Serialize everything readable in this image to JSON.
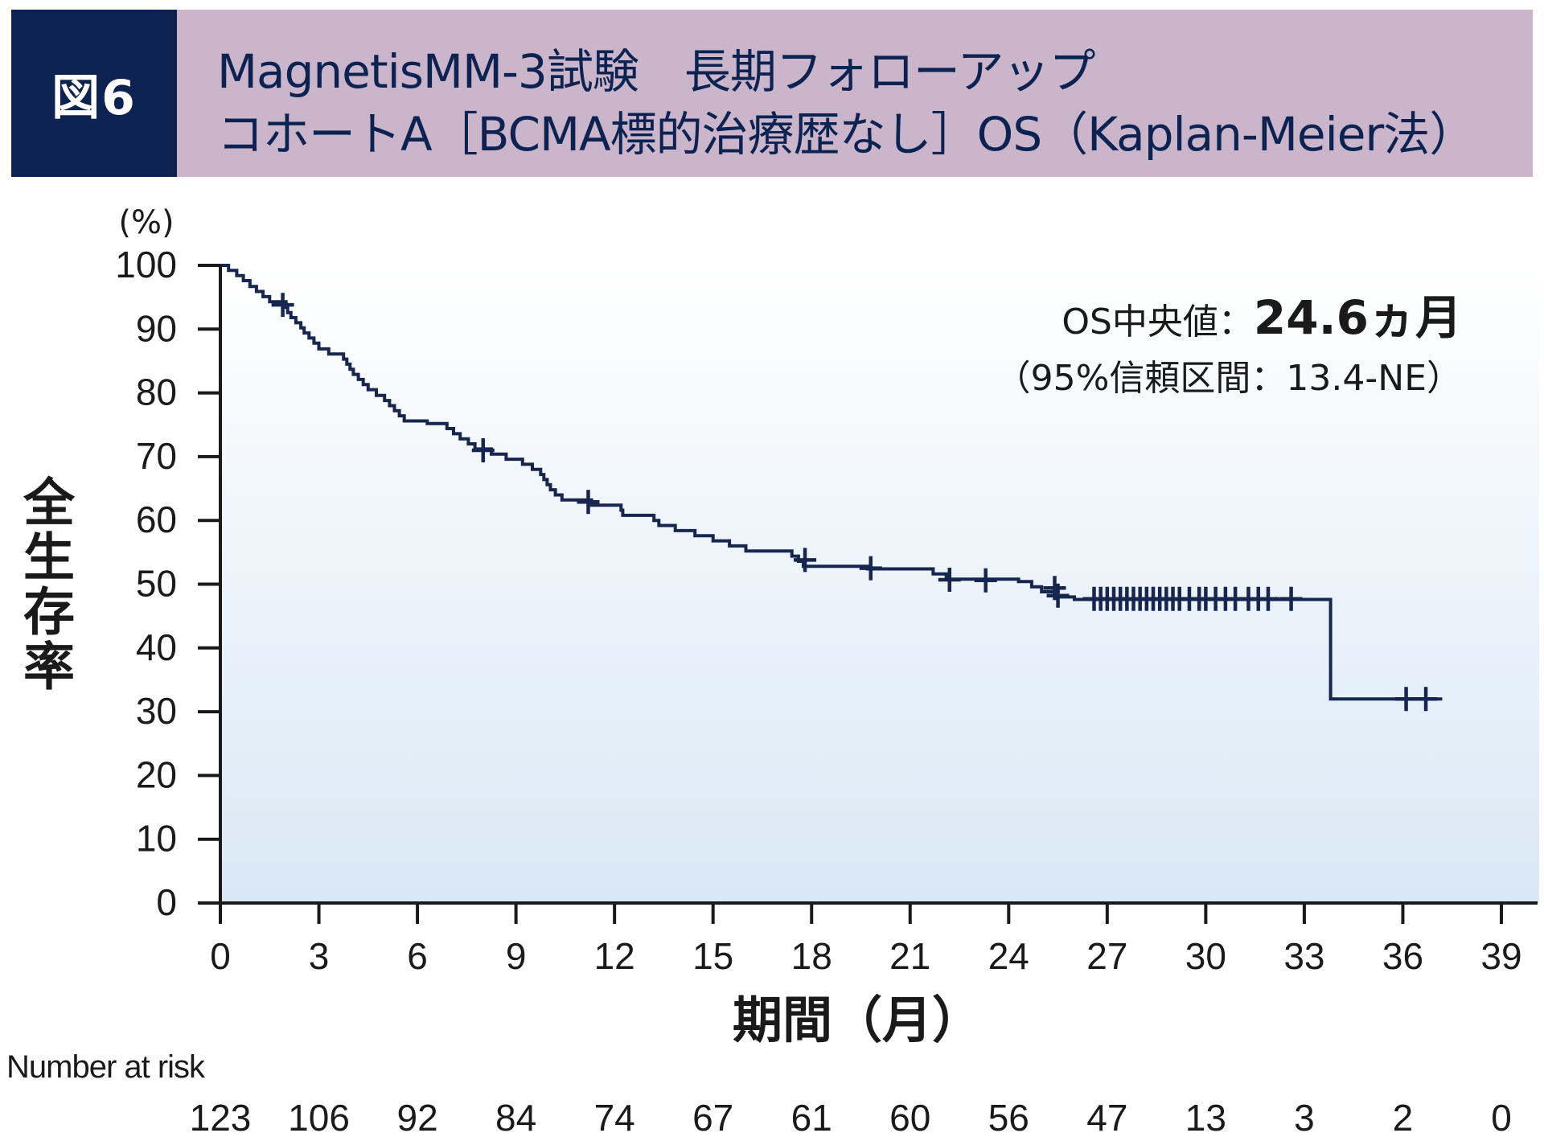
{
  "header": {
    "badge": "図6",
    "title_line1": "MagnetisMM-3試験　長期フォローアップ",
    "title_line2": "コホートA［BCMA標的治療歴なし］OS（Kaplan-Meier法）"
  },
  "colors": {
    "header_badge_bg": "#0c2352",
    "header_title_bg": "#cbb5cb",
    "title_text": "#0c2352",
    "curve": "#16264f",
    "plot_bg_top": "#ffffff",
    "plot_bg_bottom": "#d9e8f5"
  },
  "chart_data": {
    "type": "line",
    "subtype": "kaplan-meier",
    "ylabel": "全生存率",
    "yunit": "(%)",
    "xlabel": "期間（月）",
    "xlim": [
      0,
      39
    ],
    "ylim": [
      0,
      100
    ],
    "x_ticks": [
      0,
      3,
      6,
      9,
      12,
      15,
      18,
      21,
      24,
      27,
      30,
      33,
      36,
      39
    ],
    "y_ticks": [
      0,
      10,
      20,
      30,
      40,
      50,
      60,
      70,
      80,
      90,
      100
    ],
    "annotation": {
      "median_label": "OS中央値：",
      "median_value": "24.6ヵ月",
      "ci": "（95%信頼区間：13.4-NE）"
    },
    "steps": [
      [
        0,
        100
      ],
      [
        0.25,
        99.2
      ],
      [
        0.5,
        98.4
      ],
      [
        0.7,
        97.6
      ],
      [
        0.9,
        96.7
      ],
      [
        1.1,
        95.9
      ],
      [
        1.3,
        95.1
      ],
      [
        1.5,
        94.3
      ],
      [
        2.0,
        93.4
      ],
      [
        2.05,
        92.6
      ],
      [
        2.15,
        91.8
      ],
      [
        2.3,
        91.0
      ],
      [
        2.45,
        90.2
      ],
      [
        2.55,
        89.4
      ],
      [
        2.7,
        88.6
      ],
      [
        2.85,
        87.8
      ],
      [
        3.0,
        86.9
      ],
      [
        3.3,
        86.1
      ],
      [
        3.6,
        86.1
      ],
      [
        3.75,
        85.3
      ],
      [
        3.85,
        84.5
      ],
      [
        3.95,
        83.7
      ],
      [
        4.05,
        82.9
      ],
      [
        4.2,
        82.1
      ],
      [
        4.35,
        81.3
      ],
      [
        4.5,
        80.5
      ],
      [
        4.75,
        79.6
      ],
      [
        5.0,
        78.8
      ],
      [
        5.15,
        78.0
      ],
      [
        5.3,
        77.2
      ],
      [
        5.45,
        76.4
      ],
      [
        5.6,
        75.6
      ],
      [
        6.3,
        75.2
      ],
      [
        6.9,
        74.4
      ],
      [
        7.1,
        73.6
      ],
      [
        7.3,
        72.8
      ],
      [
        7.55,
        72.0
      ],
      [
        7.75,
        71.2
      ],
      [
        8.25,
        70.4
      ],
      [
        8.6,
        70.4
      ],
      [
        8.7,
        69.6
      ],
      [
        9.1,
        69.6
      ],
      [
        9.2,
        68.8
      ],
      [
        9.5,
        68.0
      ],
      [
        9.75,
        67.2
      ],
      [
        9.85,
        66.4
      ],
      [
        9.95,
        65.6
      ],
      [
        10.05,
        64.8
      ],
      [
        10.2,
        64.0
      ],
      [
        10.4,
        63.2
      ],
      [
        10.6,
        63.2
      ],
      [
        11.3,
        62.4
      ],
      [
        12.2,
        61.6
      ],
      [
        12.25,
        60.8
      ],
      [
        13.2,
        60.0
      ],
      [
        13.35,
        59.2
      ],
      [
        13.85,
        58.4
      ],
      [
        14.45,
        57.6
      ],
      [
        15.0,
        56.8
      ],
      [
        15.5,
        56.0
      ],
      [
        16.0,
        55.2
      ],
      [
        17.4,
        54.4
      ],
      [
        17.6,
        53.6
      ],
      [
        17.75,
        52.8
      ],
      [
        19.7,
        52.4
      ],
      [
        21.7,
        51.6
      ],
      [
        22.1,
        50.8
      ],
      [
        24.3,
        50.4
      ],
      [
        24.7,
        49.6
      ],
      [
        25.0,
        48.8
      ],
      [
        25.5,
        48.0
      ],
      [
        26.0,
        47.6
      ],
      [
        33.8,
        47.6
      ],
      [
        33.8,
        32.0
      ],
      [
        37.2,
        32.0
      ]
    ],
    "censored": [
      [
        1.9,
        93.8
      ],
      [
        8.0,
        71.0
      ],
      [
        11.2,
        62.9
      ],
      [
        17.8,
        53.8
      ],
      [
        19.8,
        52.5
      ],
      [
        22.2,
        50.7
      ],
      [
        23.3,
        50.6
      ],
      [
        25.4,
        49.4
      ],
      [
        25.5,
        48.2
      ],
      [
        26.6,
        47.7
      ],
      [
        26.8,
        47.7
      ],
      [
        27.0,
        47.7
      ],
      [
        27.2,
        47.7
      ],
      [
        27.4,
        47.7
      ],
      [
        27.6,
        47.7
      ],
      [
        27.8,
        47.7
      ],
      [
        28.0,
        47.7
      ],
      [
        28.2,
        47.7
      ],
      [
        28.4,
        47.7
      ],
      [
        28.6,
        47.7
      ],
      [
        28.8,
        47.7
      ],
      [
        29.0,
        47.7
      ],
      [
        29.2,
        47.7
      ],
      [
        29.5,
        47.7
      ],
      [
        29.8,
        47.7
      ],
      [
        30.0,
        47.7
      ],
      [
        30.3,
        47.7
      ],
      [
        30.6,
        47.7
      ],
      [
        30.9,
        47.7
      ],
      [
        31.3,
        47.7
      ],
      [
        31.6,
        47.7
      ],
      [
        31.9,
        47.7
      ],
      [
        32.6,
        47.7
      ],
      [
        36.1,
        32.0
      ],
      [
        36.7,
        32.0
      ]
    ],
    "number_at_risk": {
      "label": "Number at risk",
      "times": [
        0,
        3,
        6,
        9,
        12,
        15,
        18,
        21,
        24,
        27,
        30,
        33,
        36,
        39
      ],
      "counts": [
        123,
        106,
        92,
        84,
        74,
        67,
        61,
        60,
        56,
        47,
        13,
        3,
        2,
        0
      ]
    }
  }
}
